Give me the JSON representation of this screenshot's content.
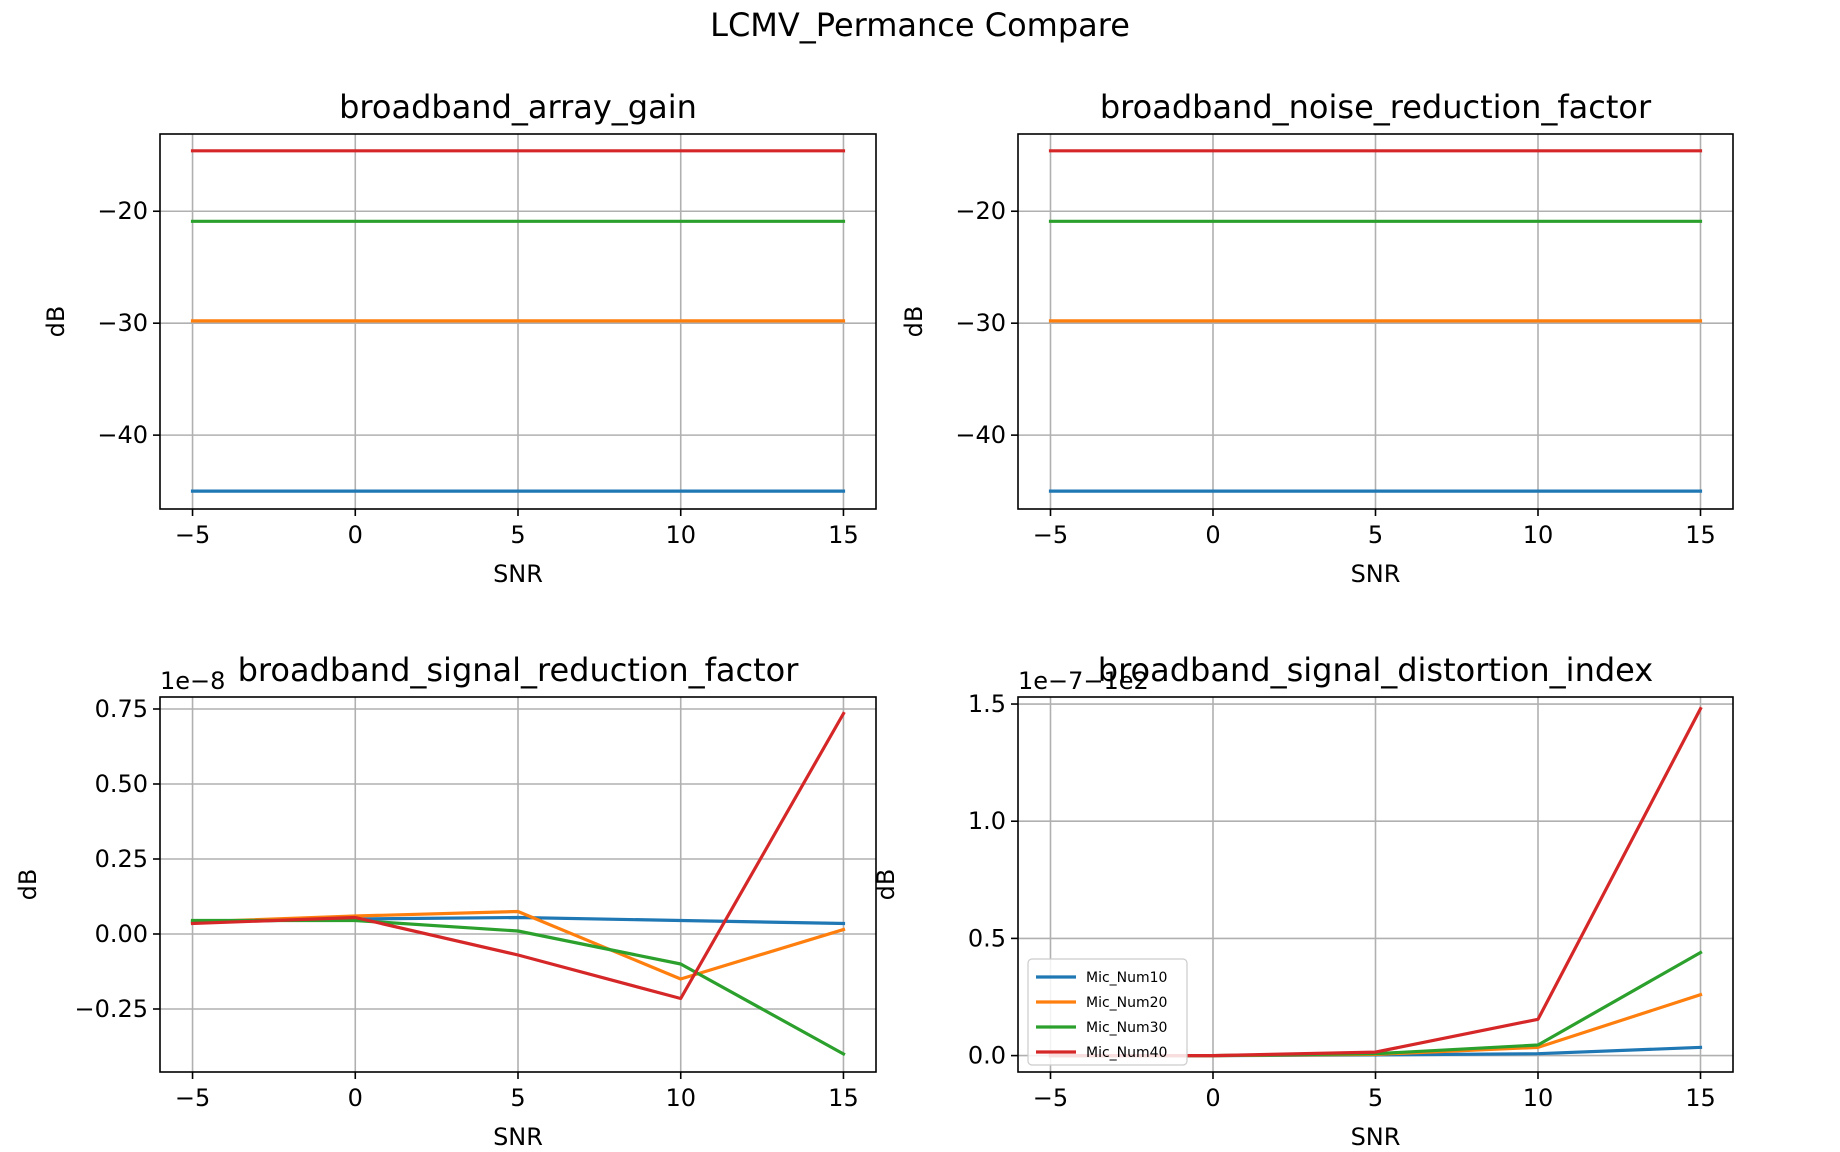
{
  "suptitle": "LCMV_Permance Compare",
  "colors": [
    "#1f77b4",
    "#ff7f0e",
    "#2ca02c",
    "#d62728"
  ],
  "chart_data": [
    {
      "type": "line",
      "title": "broadband_array_gain",
      "xlabel": "SNR",
      "ylabel": "dB",
      "x": [
        -5,
        0,
        5,
        10,
        15
      ],
      "xlim": [
        -6,
        16
      ],
      "ylim": [
        -46.6,
        -13.1
      ],
      "xticks": [
        -5,
        0,
        5,
        10,
        15
      ],
      "xtick_labels": [
        "−5",
        "0",
        "5",
        "10",
        "15"
      ],
      "yticks": [
        -40,
        -30,
        -20
      ],
      "ytick_labels": [
        "−40",
        "−30",
        "−20"
      ],
      "offset_text": "",
      "grid": true,
      "series": [
        {
          "name": "Mic_Num10",
          "values": [
            -45.0,
            -45.0,
            -45.0,
            -45.0,
            -45.0
          ]
        },
        {
          "name": "Mic_Num20",
          "values": [
            -29.8,
            -29.8,
            -29.8,
            -29.8,
            -29.8
          ]
        },
        {
          "name": "Mic_Num30",
          "values": [
            -20.9,
            -20.9,
            -20.9,
            -20.9,
            -20.9
          ]
        },
        {
          "name": "Mic_Num40",
          "values": [
            -14.6,
            -14.6,
            -14.6,
            -14.6,
            -14.6
          ]
        }
      ]
    },
    {
      "type": "line",
      "title": "broadband_noise_reduction_factor",
      "xlabel": "SNR",
      "ylabel": "dB",
      "x": [
        -5,
        0,
        5,
        10,
        15
      ],
      "xlim": [
        -6,
        16
      ],
      "ylim": [
        -46.6,
        -13.1
      ],
      "xticks": [
        -5,
        0,
        5,
        10,
        15
      ],
      "xtick_labels": [
        "−5",
        "0",
        "5",
        "10",
        "15"
      ],
      "yticks": [
        -40,
        -30,
        -20
      ],
      "ytick_labels": [
        "−40",
        "−30",
        "−20"
      ],
      "offset_text": "",
      "grid": true,
      "series": [
        {
          "name": "Mic_Num10",
          "values": [
            -45.0,
            -45.0,
            -45.0,
            -45.0,
            -45.0
          ]
        },
        {
          "name": "Mic_Num20",
          "values": [
            -29.8,
            -29.8,
            -29.8,
            -29.8,
            -29.8
          ]
        },
        {
          "name": "Mic_Num30",
          "values": [
            -20.9,
            -20.9,
            -20.9,
            -20.9,
            -20.9
          ]
        },
        {
          "name": "Mic_Num40",
          "values": [
            -14.6,
            -14.6,
            -14.6,
            -14.6,
            -14.6
          ]
        }
      ]
    },
    {
      "type": "line",
      "title": "broadband_signal_reduction_factor",
      "xlabel": "SNR",
      "ylabel": "dB",
      "x": [
        -5,
        0,
        5,
        10,
        15
      ],
      "xlim": [
        -6,
        16
      ],
      "ylim": [
        -0.46,
        0.79
      ],
      "xticks": [
        -5,
        0,
        5,
        10,
        15
      ],
      "xtick_labels": [
        "−5",
        "0",
        "5",
        "10",
        "15"
      ],
      "yticks": [
        -0.25,
        0.0,
        0.25,
        0.5,
        0.75
      ],
      "ytick_labels": [
        "−0.25",
        "0.00",
        "0.25",
        "0.50",
        "0.75"
      ],
      "offset_text": "1e−8",
      "grid": true,
      "series": [
        {
          "name": "Mic_Num10",
          "values": [
            0.04,
            0.05,
            0.055,
            0.045,
            0.035
          ]
        },
        {
          "name": "Mic_Num20",
          "values": [
            0.04,
            0.06,
            0.075,
            -0.15,
            0.015
          ]
        },
        {
          "name": "Mic_Num30",
          "values": [
            0.045,
            0.045,
            0.01,
            -0.1,
            -0.4
          ]
        },
        {
          "name": "Mic_Num40",
          "values": [
            0.035,
            0.055,
            -0.07,
            -0.215,
            0.735
          ]
        }
      ]
    },
    {
      "type": "line",
      "title": "broadband_signal_distortion_index",
      "xlabel": "SNR",
      "ylabel": "dB",
      "x": [
        -5,
        0,
        5,
        10,
        15
      ],
      "xlim": [
        -6,
        16
      ],
      "ylim": [
        -0.07,
        1.53
      ],
      "xticks": [
        -5,
        0,
        5,
        10,
        15
      ],
      "xtick_labels": [
        "−5",
        "0",
        "5",
        "10",
        "15"
      ],
      "yticks": [
        0.0,
        0.5,
        1.0,
        1.5
      ],
      "ytick_labels": [
        "0.0",
        "0.5",
        "1.0",
        "1.5"
      ],
      "offset_text": "1e−7−1e2",
      "grid": true,
      "legend": "lower-left",
      "series": [
        {
          "name": "Mic_Num10",
          "values": [
            0.0,
            0.0,
            0.003,
            0.008,
            0.035
          ]
        },
        {
          "name": "Mic_Num20",
          "values": [
            0.0,
            0.0,
            0.005,
            0.035,
            0.26
          ]
        },
        {
          "name": "Mic_Num30",
          "values": [
            0.0,
            0.0,
            0.008,
            0.045,
            0.44
          ]
        },
        {
          "name": "Mic_Num40",
          "values": [
            0.0,
            0.0,
            0.015,
            0.155,
            1.48
          ]
        }
      ]
    }
  ]
}
